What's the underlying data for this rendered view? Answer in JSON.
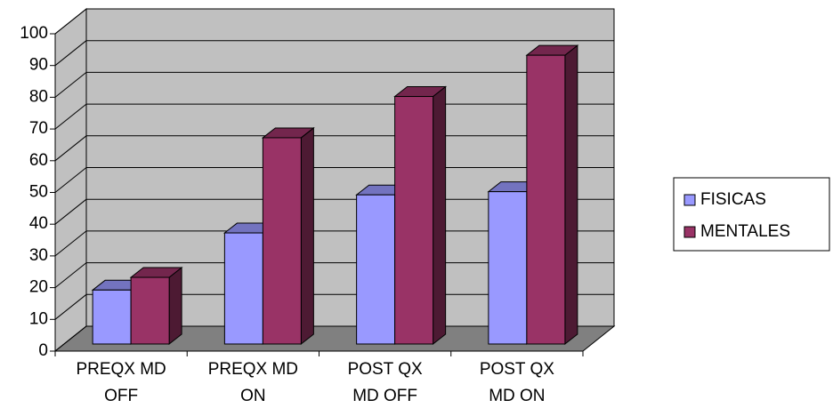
{
  "chart_data": {
    "type": "bar3d",
    "categories": [
      "PREQX MD OFF",
      "PREQX MD ON",
      "POST QX MD OFF",
      "POST QX MD ON"
    ],
    "series": [
      {
        "name": "FISICAS",
        "color": "#9999ff",
        "values": [
          17,
          35,
          47,
          48
        ]
      },
      {
        "name": "MENTALES",
        "color": "#993366",
        "values": [
          21,
          65,
          78,
          91
        ]
      }
    ],
    "ylim": [
      0,
      100
    ],
    "yticks": [
      0,
      10,
      20,
      30,
      40,
      50,
      60,
      70,
      80,
      90,
      100
    ],
    "grid": true,
    "legend": "right"
  }
}
